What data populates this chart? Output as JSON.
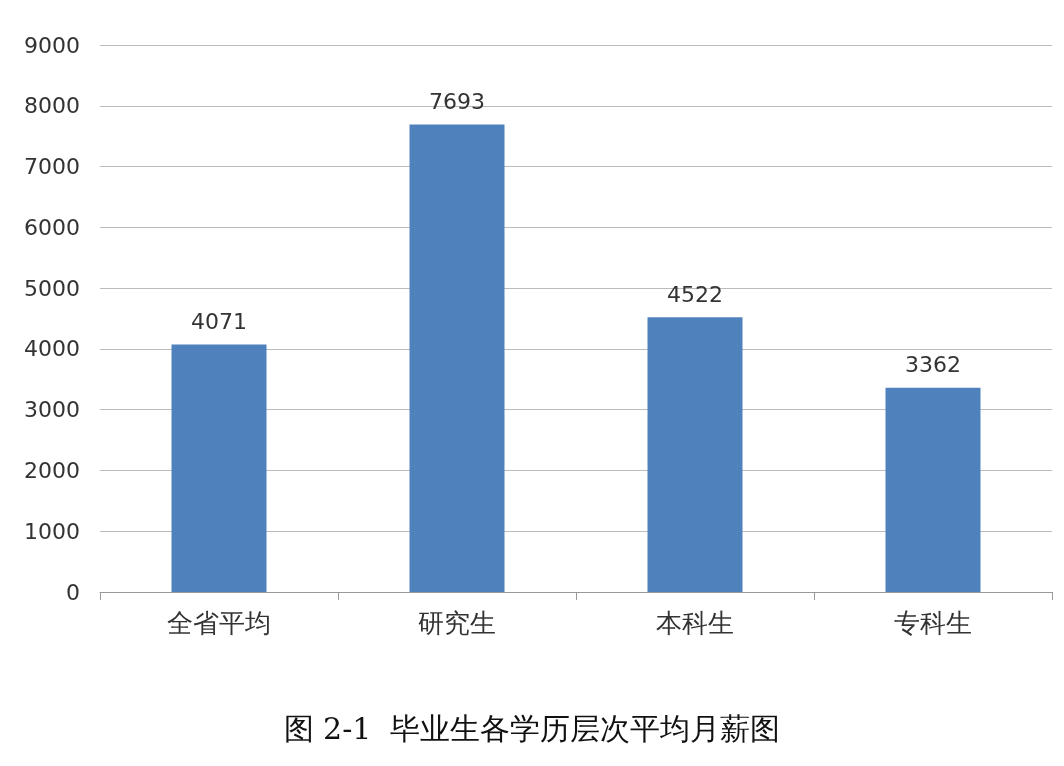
{
  "chart_data": {
    "type": "bar",
    "title": "图 2-1  毕业生各学历层次平均月薪图",
    "categories": [
      "全省平均",
      "研究生",
      "本科生",
      "专科生"
    ],
    "values": [
      4071,
      7693,
      4522,
      3362
    ],
    "color": "#4f81bd",
    "ylim": [
      0,
      9000
    ],
    "yticks": [
      0,
      1000,
      2000,
      3000,
      4000,
      5000,
      6000,
      7000,
      8000,
      9000
    ],
    "grid": "y",
    "data_labels": true
  }
}
